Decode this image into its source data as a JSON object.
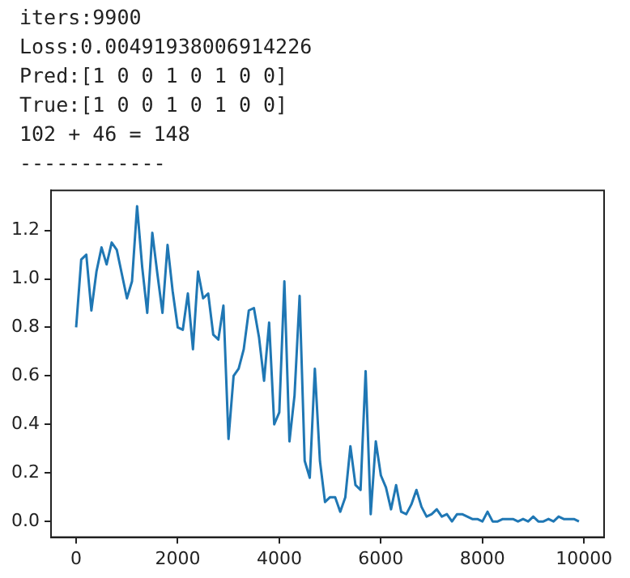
{
  "chart_data": {
    "type": "line",
    "annotations": [
      "iters:9900",
      "Loss:0.00491938006914226",
      "Pred:[1 0 0 1 0 1 0 0]",
      "True:[1 0 0 1 0 1 0 0]",
      "102 + 46 = 148",
      "------------"
    ],
    "x": [
      0,
      100,
      200,
      300,
      400,
      500,
      600,
      700,
      800,
      900,
      1000,
      1100,
      1200,
      1300,
      1400,
      1500,
      1600,
      1700,
      1800,
      1900,
      2000,
      2100,
      2200,
      2300,
      2400,
      2500,
      2600,
      2700,
      2800,
      2900,
      3000,
      3100,
      3200,
      3300,
      3400,
      3500,
      3600,
      3700,
      3800,
      3900,
      4000,
      4100,
      4200,
      4300,
      4400,
      4500,
      4600,
      4700,
      4800,
      4900,
      5000,
      5100,
      5200,
      5300,
      5400,
      5500,
      5600,
      5700,
      5800,
      5900,
      6000,
      6100,
      6200,
      6300,
      6400,
      6500,
      6600,
      6700,
      6800,
      6900,
      7000,
      7100,
      7200,
      7300,
      7400,
      7500,
      7600,
      7700,
      7800,
      7900,
      8000,
      8100,
      8200,
      8300,
      8400,
      8500,
      8600,
      8700,
      8800,
      8900,
      9000,
      9100,
      9200,
      9300,
      9400,
      9500,
      9600,
      9700,
      9800,
      9900
    ],
    "series": [
      {
        "color": "#1f77b4",
        "values": [
          0.8,
          1.08,
          1.1,
          0.87,
          1.03,
          1.13,
          1.06,
          1.15,
          1.12,
          1.02,
          0.92,
          0.99,
          1.3,
          1.05,
          0.86,
          1.19,
          1.02,
          0.86,
          1.14,
          0.95,
          0.8,
          0.79,
          0.94,
          0.71,
          1.03,
          0.92,
          0.94,
          0.77,
          0.75,
          0.89,
          0.34,
          0.6,
          0.63,
          0.71,
          0.87,
          0.88,
          0.76,
          0.58,
          0.82,
          0.4,
          0.45,
          0.99,
          0.33,
          0.52,
          0.93,
          0.25,
          0.18,
          0.63,
          0.25,
          0.08,
          0.1,
          0.1,
          0.04,
          0.1,
          0.31,
          0.15,
          0.13,
          0.62,
          0.03,
          0.33,
          0.19,
          0.14,
          0.05,
          0.15,
          0.04,
          0.03,
          0.07,
          0.13,
          0.06,
          0.02,
          0.03,
          0.05,
          0.02,
          0.03,
          0.0,
          0.03,
          0.03,
          0.02,
          0.01,
          0.01,
          0.0,
          0.04,
          0.0,
          0.0,
          0.01,
          0.01,
          0.01,
          0.0,
          0.01,
          0.0,
          0.02,
          0.0,
          0.0,
          0.01,
          0.0,
          0.02,
          0.01,
          0.01,
          0.01,
          0.0
        ]
      }
    ],
    "xlim": [
      -495,
      10395
    ],
    "ylim": [
      -0.065,
      1.365
    ],
    "xticks": [
      0,
      2000,
      4000,
      6000,
      8000,
      10000
    ],
    "yticks": [
      {
        "value": 0,
        "label": "0.0"
      },
      0.2,
      0.4,
      0.6,
      0.8,
      {
        "value": 1,
        "label": "1.0"
      },
      1.2
    ],
    "grid": false,
    "legend": false,
    "marker": "none",
    "line_style": "solid"
  }
}
